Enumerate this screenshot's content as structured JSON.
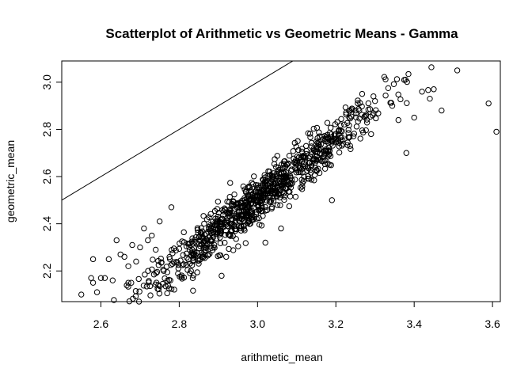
{
  "chart_data": {
    "type": "scatter",
    "title": "Scatterplot of Arithmetic vs Geometric Means - Gamma",
    "xlabel": "arithmetic_mean",
    "ylabel": "geometric_mean",
    "xlim": [
      2.5,
      3.62
    ],
    "ylim": [
      2.07,
      3.09
    ],
    "x_ticks": [
      2.6,
      2.8,
      3.0,
      3.2,
      3.4,
      3.6
    ],
    "x_tick_labels": [
      "2.6",
      "2.8",
      "3.0",
      "3.2",
      "3.4",
      "3.6"
    ],
    "y_ticks": [
      2.2,
      2.4,
      2.6,
      2.8,
      3.0
    ],
    "y_tick_labels": [
      "2.2",
      "2.4",
      "2.6",
      "2.8",
      "3.0"
    ],
    "grid": false,
    "legend": "none",
    "reference_line": {
      "type": "identity",
      "slope": 1,
      "intercept": 0
    },
    "point_style": "open-circle",
    "color": "#000000",
    "series": [
      {
        "values": [
          [
            2.55,
            2.1
          ],
          [
            2.58,
            2.25
          ],
          [
            2.575,
            2.17
          ],
          [
            2.58,
            2.15
          ],
          [
            2.59,
            2.11
          ],
          [
            2.6,
            2.17
          ],
          [
            2.61,
            2.17
          ],
          [
            2.62,
            2.25
          ],
          [
            2.64,
            2.33
          ],
          [
            2.65,
            2.27
          ],
          [
            2.66,
            2.26
          ],
          [
            2.67,
            2.22
          ],
          [
            2.68,
            2.31
          ],
          [
            2.69,
            2.24
          ],
          [
            2.7,
            2.3
          ],
          [
            2.71,
            2.38
          ],
          [
            2.72,
            2.33
          ],
          [
            2.73,
            2.35
          ],
          [
            2.74,
            2.29
          ],
          [
            2.75,
            2.41
          ],
          [
            3.51,
            3.05
          ],
          [
            3.59,
            2.91
          ],
          [
            3.61,
            2.79
          ],
          [
            3.45,
            2.97
          ],
          [
            3.44,
            2.93
          ],
          [
            3.42,
            2.96
          ],
          [
            3.47,
            2.88
          ],
          [
            3.4,
            2.85
          ],
          [
            3.3,
            2.92
          ],
          [
            3.25,
            2.88
          ],
          [
            3.02,
            2.32
          ],
          [
            2.83,
            2.2
          ],
          [
            2.78,
            2.47
          ],
          [
            2.67,
            2.15
          ],
          [
            2.63,
            2.16
          ],
          [
            3.38,
            2.7
          ],
          [
            3.29,
            2.78
          ],
          [
            3.19,
            2.5
          ],
          [
            3.06,
            2.38
          ],
          [
            2.92,
            2.26
          ]
        ],
        "generated_cloud": {
          "count": 950,
          "x_mean": 3.0,
          "x_sd": 0.16,
          "slope": 1.3,
          "intercept": -1.4,
          "noise_sd": 0.05
        }
      }
    ]
  }
}
